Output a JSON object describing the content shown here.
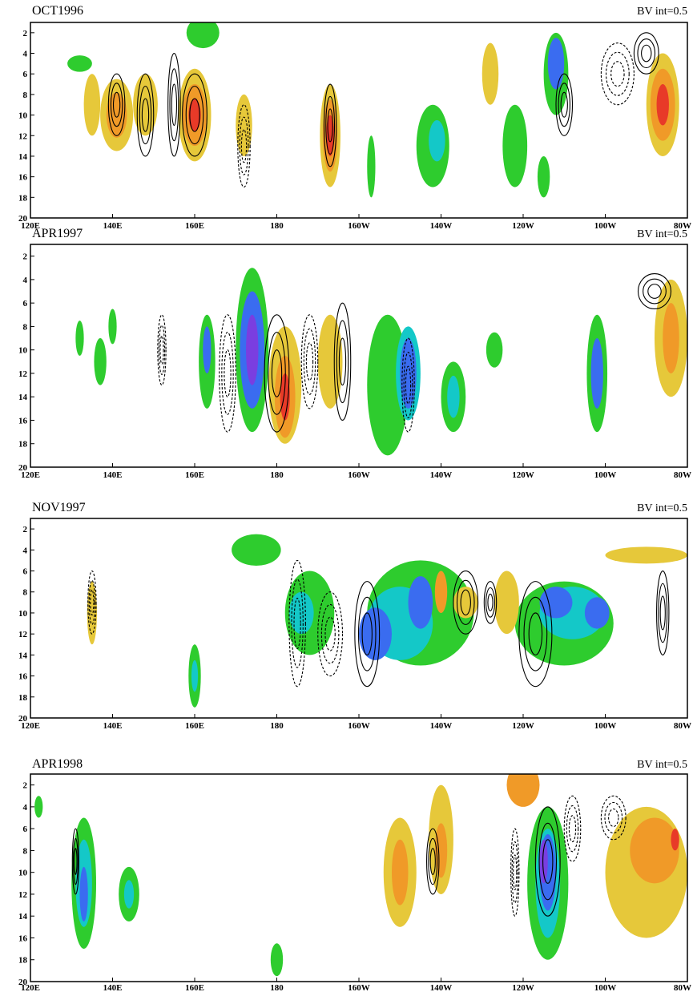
{
  "chart_data": [
    {
      "type": "contour",
      "title": "OCT1996",
      "annotation": "BV int=0.5",
      "xlim": [
        120,
        280
      ],
      "xticks": [
        {
          "value": 120,
          "label": "120E"
        },
        {
          "value": 140,
          "label": "140E"
        },
        {
          "value": 160,
          "label": "160E"
        },
        {
          "value": 180,
          "label": "180"
        },
        {
          "value": 200,
          "label": "160W"
        },
        {
          "value": 220,
          "label": "140W"
        },
        {
          "value": 240,
          "label": "120W"
        },
        {
          "value": 260,
          "label": "100W"
        },
        {
          "value": 280,
          "label": "80W"
        }
      ],
      "ylim": [
        20,
        1
      ],
      "yticks": [
        2,
        4,
        6,
        8,
        10,
        12,
        14,
        16,
        18,
        20
      ]
    },
    {
      "type": "contour",
      "title": "APR1997",
      "annotation": "BV int=0.5",
      "xlim": [
        120,
        280
      ],
      "xticks": [
        {
          "value": 120,
          "label": "120E"
        },
        {
          "value": 140,
          "label": "140E"
        },
        {
          "value": 160,
          "label": "160E"
        },
        {
          "value": 180,
          "label": "180"
        },
        {
          "value": 200,
          "label": "160W"
        },
        {
          "value": 220,
          "label": "140W"
        },
        {
          "value": 240,
          "label": "120W"
        },
        {
          "value": 260,
          "label": "100W"
        },
        {
          "value": 280,
          "label": "80W"
        }
      ],
      "ylim": [
        20,
        1
      ],
      "yticks": [
        2,
        4,
        6,
        8,
        10,
        12,
        14,
        16,
        18,
        20
      ]
    },
    {
      "type": "contour",
      "title": "NOV1997",
      "annotation": "BV int=0.5",
      "xlim": [
        120,
        280
      ],
      "xticks": [
        {
          "value": 120,
          "label": "120E"
        },
        {
          "value": 140,
          "label": "140E"
        },
        {
          "value": 160,
          "label": "160E"
        },
        {
          "value": 180,
          "label": "180"
        },
        {
          "value": 200,
          "label": "160W"
        },
        {
          "value": 220,
          "label": "140W"
        },
        {
          "value": 240,
          "label": "120W"
        },
        {
          "value": 260,
          "label": "100W"
        },
        {
          "value": 280,
          "label": "80W"
        }
      ],
      "ylim": [
        20,
        1
      ],
      "yticks": [
        2,
        4,
        6,
        8,
        10,
        12,
        14,
        16,
        18,
        20
      ]
    },
    {
      "type": "contour",
      "title": "APR1998",
      "annotation": "BV int=0.5",
      "xlim": [
        120,
        280
      ],
      "xticks": [
        {
          "value": 120,
          "label": "120E"
        },
        {
          "value": 140,
          "label": "140E"
        },
        {
          "value": 160,
          "label": "160E"
        },
        {
          "value": 180,
          "label": "180"
        },
        {
          "value": 200,
          "label": "160W"
        },
        {
          "value": 220,
          "label": "140W"
        },
        {
          "value": 240,
          "label": "120W"
        },
        {
          "value": 260,
          "label": "100W"
        },
        {
          "value": 280,
          "label": "80W"
        }
      ],
      "ylim": [
        20,
        1
      ],
      "yticks": [
        2,
        4,
        6,
        8,
        10,
        12,
        14,
        16,
        18,
        20
      ]
    }
  ]
}
